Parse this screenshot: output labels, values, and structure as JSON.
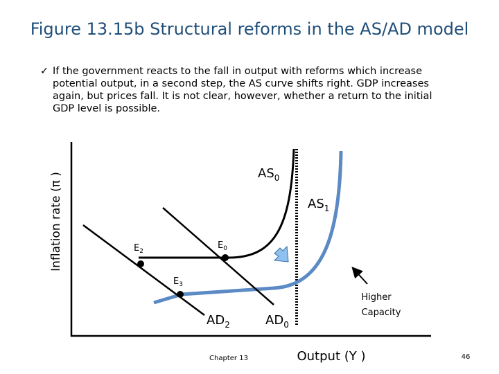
{
  "header": {
    "title": "Figure 13.15b Structural reforms in the AS/AD model"
  },
  "bullet": {
    "text": "If the government reacts to the fall in output with reforms which increase potential output, in a second step, the AS curve shifts right. GDP increases again, but prices fall. It is not clear, however, whether a return to the initial GDP level is possible."
  },
  "diagram": {
    "y_axis_label": "Inflation rate (π )",
    "x_axis_label": "Output (Y )",
    "labels": {
      "as0": {
        "base": "AS",
        "sub": "0"
      },
      "as1": {
        "base": "AS",
        "sub": "1"
      },
      "e0": {
        "base": "E",
        "sub": "0"
      },
      "e2": {
        "base": "E",
        "sub": "2"
      },
      "e3": {
        "base": "E",
        "sub": "3"
      },
      "ad2": {
        "base": "AD",
        "sub": "2"
      },
      "ad0": {
        "base": "AD",
        "sub": "0"
      }
    },
    "annotation": [
      "Higher",
      "Capacity"
    ]
  },
  "footer": {
    "chapter": "Chapter 13",
    "page": "46"
  }
}
